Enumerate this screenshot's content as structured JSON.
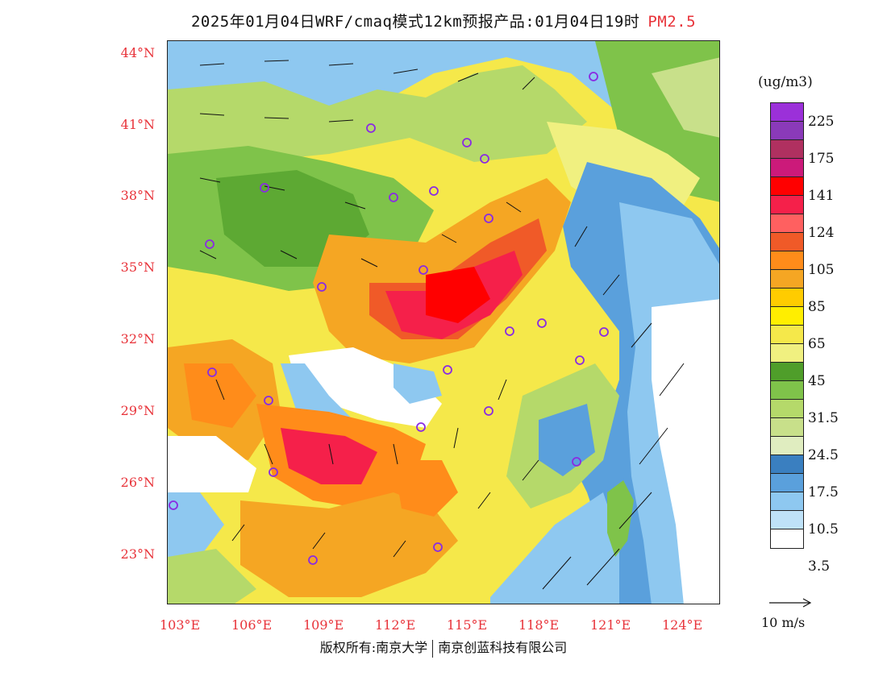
{
  "header": {
    "title": "2025年01月04日WRF/cmaq模式12km预报产品:01月04日19时",
    "pollutant": "PM2.5"
  },
  "map": {
    "lat_labels": [
      "44°N",
      "41°N",
      "38°N",
      "35°N",
      "32°N",
      "29°N",
      "26°N",
      "23°N"
    ],
    "lon_labels": [
      "103°E",
      "106°E",
      "109°E",
      "112°E",
      "115°E",
      "118°E",
      "121°E",
      "124°E"
    ]
  },
  "legend": {
    "unit": "(ug/m3)",
    "colors": [
      "#9b30d9",
      "#8a3ab9",
      "#b03060",
      "#cc1a7a",
      "#ff0000",
      "#f5204a",
      "#ff6060",
      "#f05a28",
      "#ff8c1a",
      "#f5a623",
      "#ffcc00",
      "#ffee00",
      "#f5e84a",
      "#f0f080",
      "#4f9e2a",
      "#7fc34a",
      "#b5d96a",
      "#c8e08a",
      "#e0edc0",
      "#3a7fc0",
      "#5aa0dc",
      "#8ec8f0",
      "#bfe2f8",
      "#ffffff"
    ],
    "labels": [
      "225",
      "175",
      "141",
      "124",
      "105",
      "85",
      "65",
      "45",
      "31.5",
      "24.5",
      "17.5",
      "10.5",
      "3.5"
    ]
  },
  "wind": {
    "reference_label": "10 m/s"
  },
  "footer": {
    "copyright_left": "版权所有:南京大学",
    "copyright_right": "南京创蓝科技有限公司"
  }
}
